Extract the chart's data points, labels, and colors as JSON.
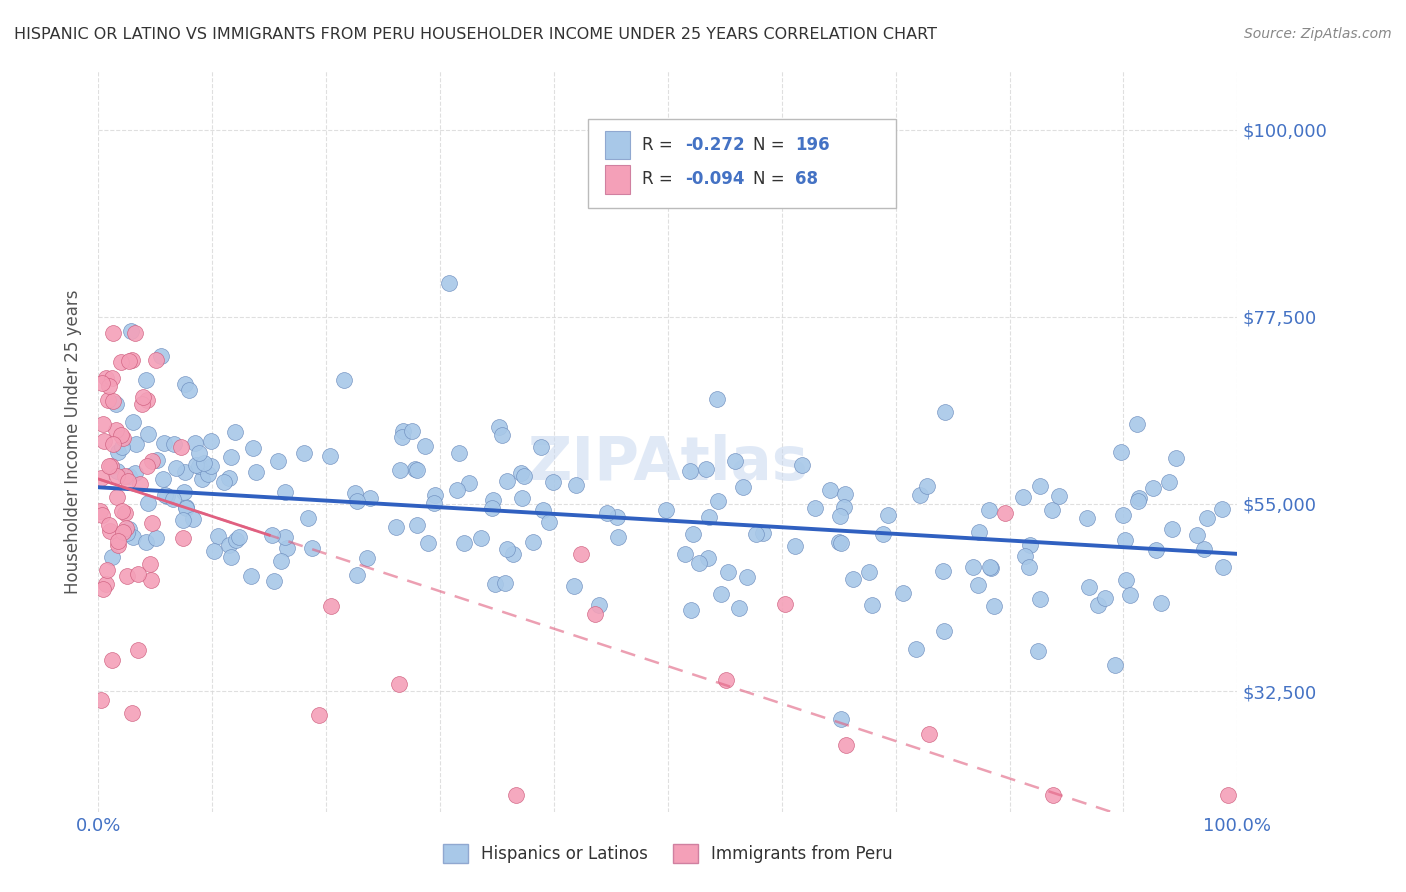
{
  "title": "HISPANIC OR LATINO VS IMMIGRANTS FROM PERU HOUSEHOLDER INCOME UNDER 25 YEARS CORRELATION CHART",
  "source": "Source: ZipAtlas.com",
  "ylabel": "Householder Income Under 25 years",
  "xlim": [
    0.0,
    1.0
  ],
  "ylim": [
    18000,
    107000
  ],
  "yticks": [
    32500,
    55000,
    77500,
    100000
  ],
  "ytick_labels": [
    "$32,500",
    "$55,000",
    "$77,500",
    "$100,000"
  ],
  "xticks": [
    0.0,
    0.1,
    0.2,
    0.3,
    0.4,
    0.5,
    0.6,
    0.7,
    0.8,
    0.9,
    1.0
  ],
  "xtick_labels": [
    "0.0%",
    "",
    "",
    "",
    "",
    "",
    "",
    "",
    "",
    "",
    "100.0%"
  ],
  "blue_R": -0.272,
  "blue_N": 196,
  "pink_R": -0.094,
  "pink_N": 68,
  "blue_color": "#a8c8e8",
  "pink_color": "#f4a0b8",
  "blue_line_color": "#3060c0",
  "pink_line_color": "#e06080",
  "axis_label_color": "#4472c4",
  "title_color": "#333333",
  "grid_color": "#d8d8d8",
  "watermark": "ZIPAtlas",
  "legend_blue_label": "Hispanics or Latinos",
  "legend_pink_label": "Immigrants from Peru",
  "blue_intercept": 57000,
  "blue_slope": -8000,
  "pink_intercept": 58000,
  "pink_slope": -45000
}
